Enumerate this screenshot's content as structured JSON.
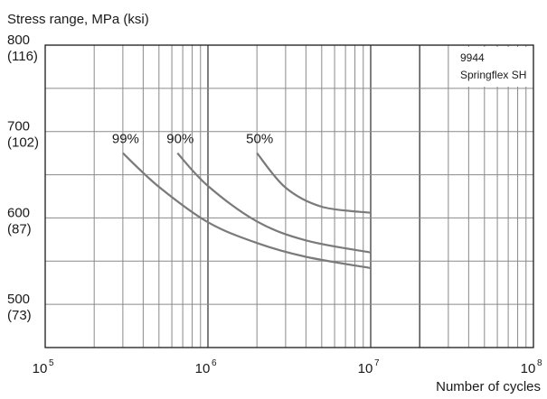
{
  "chart_data": {
    "type": "line",
    "ylabel": "Stress range, MPa (ksi)",
    "xlabel": "Number of cycles",
    "x_scale": "log",
    "xlim": [
      100000,
      100000000
    ],
    "ylim": [
      450,
      800
    ],
    "grid": true,
    "x_ticks": [
      {
        "value": 100000,
        "label": "10",
        "exp": "5"
      },
      {
        "value": 1000000,
        "label": "10",
        "exp": "6"
      },
      {
        "value": 10000000,
        "label": "10",
        "exp": "7"
      },
      {
        "value": 100000000,
        "label": "10",
        "exp": "8"
      }
    ],
    "y_ticks": [
      {
        "value": 800,
        "label": "800",
        "sub": "(116)"
      },
      {
        "value": 700,
        "label": "700",
        "sub": "(102)"
      },
      {
        "value": 600,
        "label": "600",
        "sub": "(87)"
      },
      {
        "value": 500,
        "label": "500",
        "sub": "(73)"
      }
    ],
    "y_gridlines": [
      750,
      700,
      650,
      600,
      550,
      500
    ],
    "series": [
      {
        "name": "99%",
        "x": [
          300000,
          500000,
          1000000,
          2000000,
          4000000,
          10000000
        ],
        "y": [
          675,
          636,
          595,
          571,
          555,
          542
        ]
      },
      {
        "name": "90%",
        "x": [
          650000,
          1000000,
          2000000,
          4000000,
          10000000
        ],
        "y": [
          675,
          637,
          596,
          574,
          560
        ]
      },
      {
        "name": "50%",
        "x": [
          2000000,
          3000000,
          5000000,
          10000000
        ],
        "y": [
          675,
          635,
          613,
          606
        ]
      }
    ],
    "annotations": [
      "9944",
      "Springflex SH"
    ]
  },
  "legend_box": {
    "line1": "9944",
    "line2": "Springflex SH"
  }
}
